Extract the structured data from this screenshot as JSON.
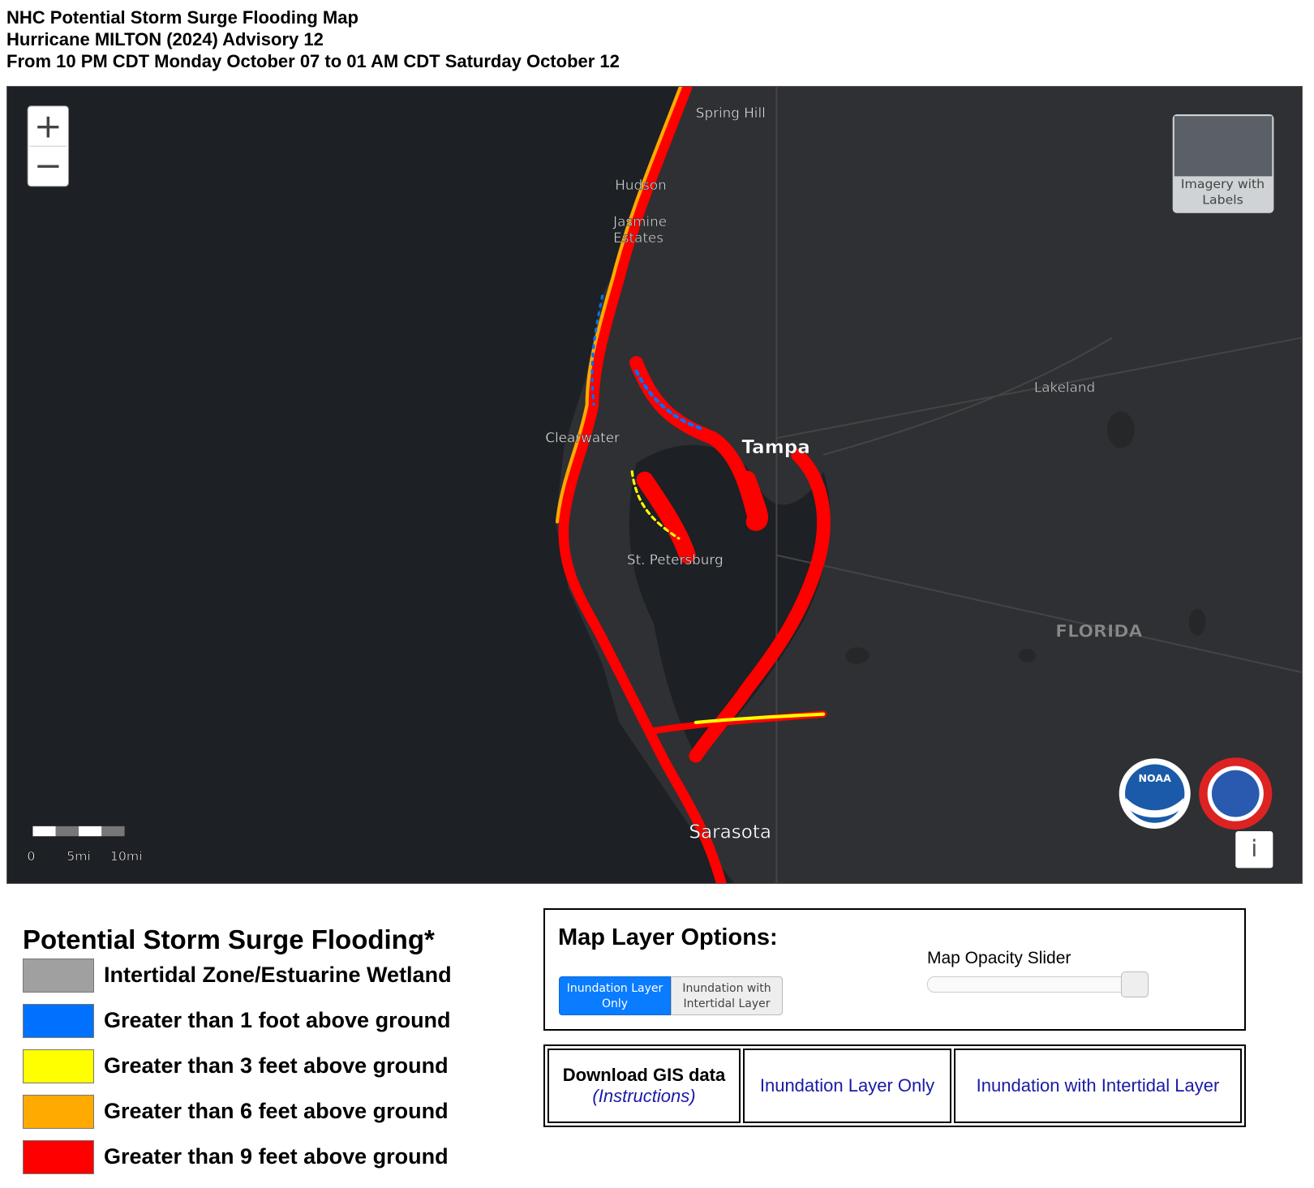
{
  "header": {
    "lines": [
      "NHC Potential Storm Surge Flooding Map",
      "Hurricane MILTON (2024) Advisory 12",
      "From 10 PM CDT Monday October 07 to 01 AM CDT Saturday October 12"
    ]
  },
  "map": {
    "zoom_in": "+",
    "zoom_out": "−",
    "places": [
      {
        "label_lines": [
          "Spring Hill"
        ]
      },
      {
        "label_lines": [
          "Hudson"
        ]
      },
      {
        "label_lines": [
          "Jasmine",
          "Estates"
        ]
      },
      {
        "label_lines": [
          "Clearwater"
        ]
      },
      {
        "label_lines": [
          "Tampa"
        ]
      },
      {
        "label_lines": [
          "St. Petersburg"
        ]
      },
      {
        "label_lines": [
          "Lakeland"
        ]
      },
      {
        "label_lines": [
          "FLORIDA"
        ]
      },
      {
        "label_lines": [
          "Sarasota"
        ]
      }
    ],
    "basemap_button": [
      "Imagery with",
      "Labels"
    ],
    "scale_labels": [
      "0",
      "5mi",
      "10mi"
    ],
    "logos": [
      "NOAA",
      "NATIONAL WEATHER SERVICE"
    ],
    "info_button": "i"
  },
  "legend": {
    "title": "Potential Storm Surge Flooding*",
    "items": [
      {
        "label": "Intertidal Zone/Estuarine Wetland",
        "color": "#a0a0a0"
      },
      {
        "label": "Greater than 1 foot above ground",
        "color": "#0070ff"
      },
      {
        "label": "Greater than 3 feet above ground",
        "color": "#ffff00"
      },
      {
        "label": "Greater than 6 feet above ground",
        "color": "#ffaa00"
      },
      {
        "label": "Greater than 9 feet above ground",
        "color": "#ff0000"
      }
    ]
  },
  "layer_options": {
    "title": "Map Layer Options:",
    "buttons": [
      [
        "Inundation Layer",
        "Only"
      ],
      [
        "Inundation with",
        "Intertidal Layer"
      ]
    ],
    "slider_label": "Map Opacity Slider"
  },
  "downloads": {
    "heading": "Download GIS data",
    "instructions": "(Instructions)",
    "links": [
      "Inundation Layer Only",
      "Inundation with Intertidal Layer"
    ]
  }
}
